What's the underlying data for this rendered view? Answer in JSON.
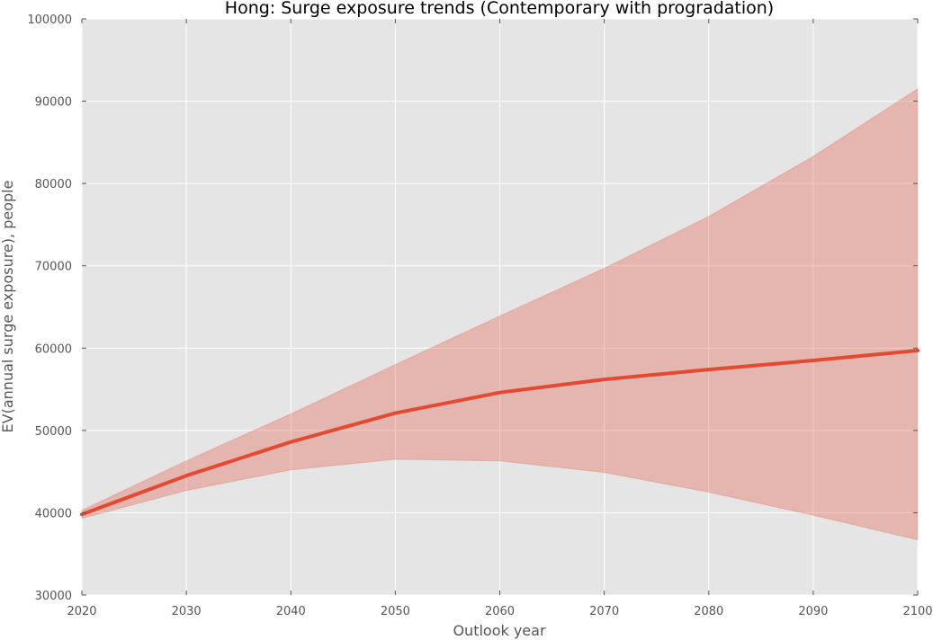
{
  "chart_data": {
    "type": "line",
    "title": "Hong: Surge exposure trends (Contemporary with progradation)",
    "xlabel": "Outlook year",
    "ylabel": "EV(annual surge exposure), people",
    "xlim": [
      2020,
      2100
    ],
    "ylim": [
      30000,
      100000
    ],
    "xticks": [
      2020,
      2030,
      2040,
      2050,
      2060,
      2070,
      2080,
      2090,
      2100
    ],
    "yticks": [
      30000,
      40000,
      50000,
      60000,
      70000,
      80000,
      90000,
      100000
    ],
    "grid": true,
    "x": [
      2020,
      2030,
      2040,
      2050,
      2060,
      2070,
      2080,
      2090,
      2100
    ],
    "series": [
      {
        "values": [
          39800,
          44500,
          48600,
          52100,
          54600,
          56200,
          57400,
          58500,
          59700
        ],
        "lower": [
          39300,
          42700,
          45200,
          46500,
          46300,
          44900,
          42500,
          39700,
          36700
        ],
        "upper": [
          40300,
          46300,
          52000,
          58000,
          63900,
          69700,
          76000,
          83300,
          91500
        ],
        "color": "#e24a33"
      }
    ],
    "colors": {
      "plot_background": "#e5e5e5",
      "band": "#e24a33",
      "grid": "#ffffff"
    }
  }
}
